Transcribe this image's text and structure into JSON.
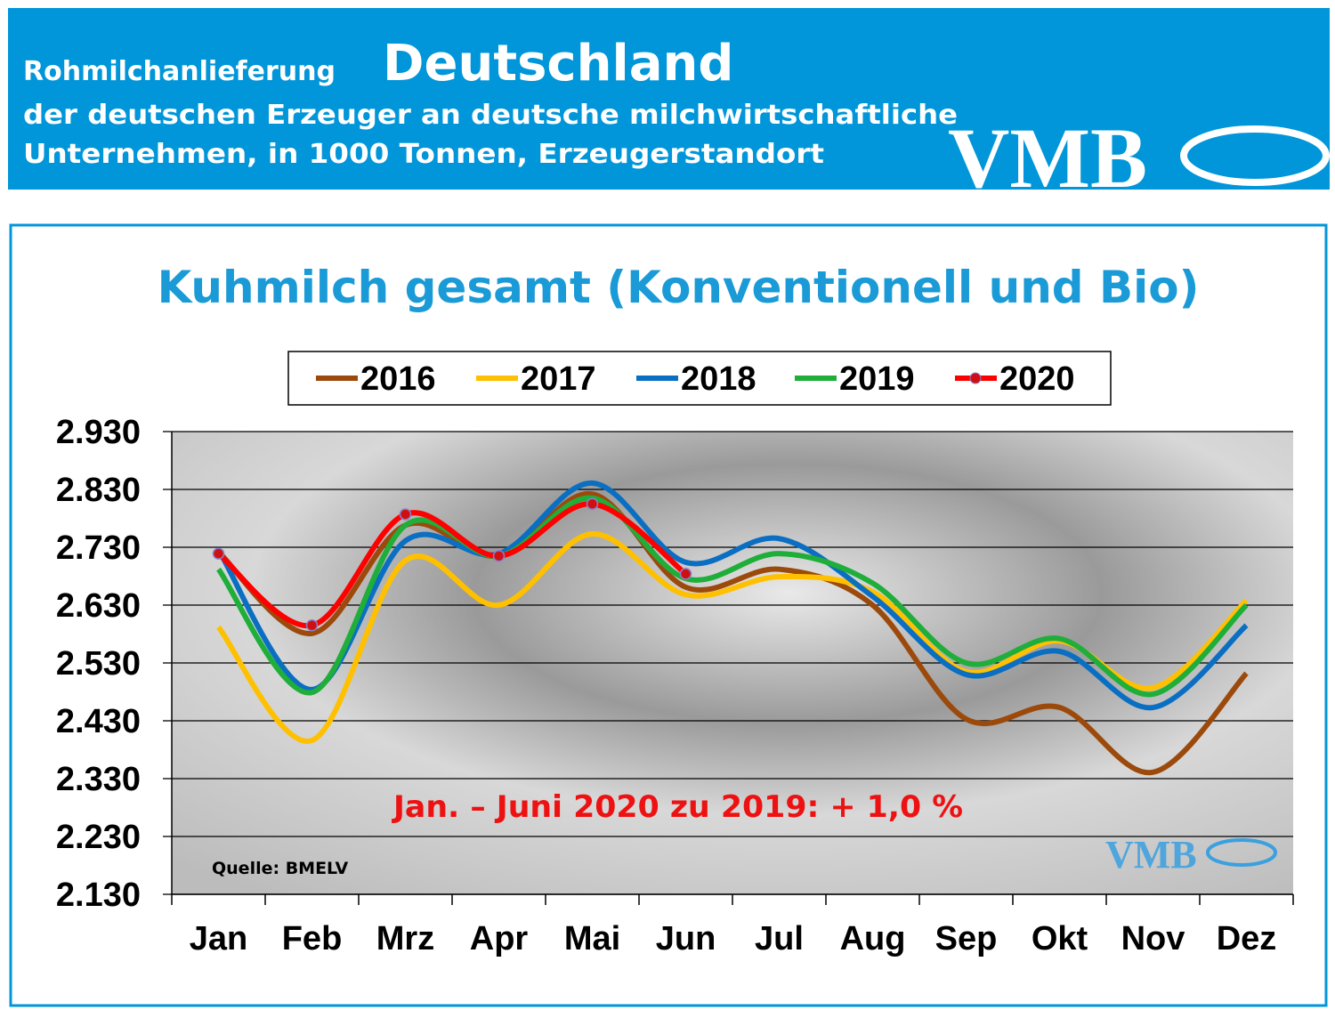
{
  "header": {
    "line1": "Rohmilchanlieferung",
    "country": "Deutschland",
    "line2": "der deutschen Erzeuger an deutsche milchwirtschaftliche",
    "line3": "Unternehmen, in 1000 Tonnen, Erzeugerstandort",
    "logo": "VMB"
  },
  "chart_data": {
    "type": "line",
    "title": "Kuhmilch gesamt (Konventionell und Bio)",
    "categories": [
      "Jan",
      "Feb",
      "Mrz",
      "Apr",
      "Mai",
      "Jun",
      "Jul",
      "Aug",
      "Sep",
      "Okt",
      "Nov",
      "Dez"
    ],
    "series": [
      {
        "name": "2016",
        "color": "#9c4a0c",
        "values": [
          2722,
          2581,
          2768,
          2715,
          2822,
          2661,
          2692,
          2630,
          2433,
          2453,
          2341,
          2512
        ]
      },
      {
        "name": "2017",
        "color": "#ffc000",
        "values": [
          2592,
          2396,
          2707,
          2630,
          2753,
          2648,
          2679,
          2653,
          2515,
          2568,
          2487,
          2638
        ]
      },
      {
        "name": "2018",
        "color": "#0a6fc2",
        "values": [
          2725,
          2484,
          2741,
          2719,
          2841,
          2704,
          2745,
          2645,
          2510,
          2550,
          2453,
          2595
        ]
      },
      {
        "name": "2019",
        "color": "#1fae3a",
        "values": [
          2692,
          2479,
          2768,
          2715,
          2815,
          2676,
          2719,
          2668,
          2530,
          2572,
          2476,
          2630
        ]
      },
      {
        "name": "2020",
        "color": "#ff0000",
        "markers": true,
        "values": [
          2719,
          2595,
          2787,
          2715,
          2805,
          2684,
          null,
          null,
          null,
          null,
          null,
          null
        ]
      }
    ],
    "ylim": [
      2130,
      2930
    ],
    "yticks": [
      {
        "value": 2130,
        "label": "2.130"
      },
      {
        "value": 2230,
        "label": "2.230"
      },
      {
        "value": 2330,
        "label": "2.330"
      },
      {
        "value": 2430,
        "label": "2.430"
      },
      {
        "value": 2530,
        "label": "2.530"
      },
      {
        "value": 2630,
        "label": "2.630"
      },
      {
        "value": 2730,
        "label": "2.730"
      },
      {
        "value": 2830,
        "label": "2.830"
      },
      {
        "value": 2930,
        "label": "2.930"
      }
    ],
    "grid": true,
    "annotation": "Jan. – Juni 2020 zu 2019: + 1,0 %",
    "source": "Quelle:  BMELV",
    "watermark": "VMB"
  }
}
